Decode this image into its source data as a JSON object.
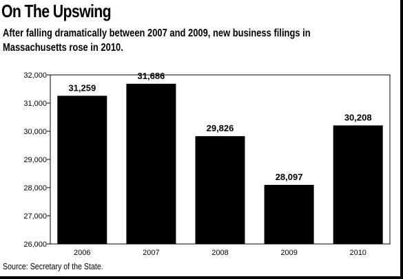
{
  "title": "On The Upswing",
  "subtitle": "After falling dramatically between 2007 and 2009, new business filings in Massachusetts rose in 2010.",
  "source": "Source: Secretary of the State.",
  "chart_data": {
    "type": "bar",
    "title": "On The Upswing",
    "subtitle": "After falling dramatically between 2007 and 2009, new business filings in Massachusetts rose in 2010.",
    "categories": [
      "2006",
      "2007",
      "2008",
      "2009",
      "2010"
    ],
    "values": [
      31259,
      31686,
      29826,
      28097,
      30208
    ],
    "value_labels": [
      "31,259",
      "31,686",
      "29,826",
      "28,097",
      "30,208"
    ],
    "ylim": [
      26000,
      32000
    ],
    "y_ticks": [
      26000,
      27000,
      28000,
      29000,
      30000,
      31000,
      32000
    ],
    "y_tick_labels": [
      "26,000",
      "27,000",
      "28,000",
      "29,000",
      "30,000",
      "31,000",
      "32,000"
    ],
    "xlabel": "",
    "ylabel": "",
    "grid": false,
    "bar_color": "#000000"
  }
}
